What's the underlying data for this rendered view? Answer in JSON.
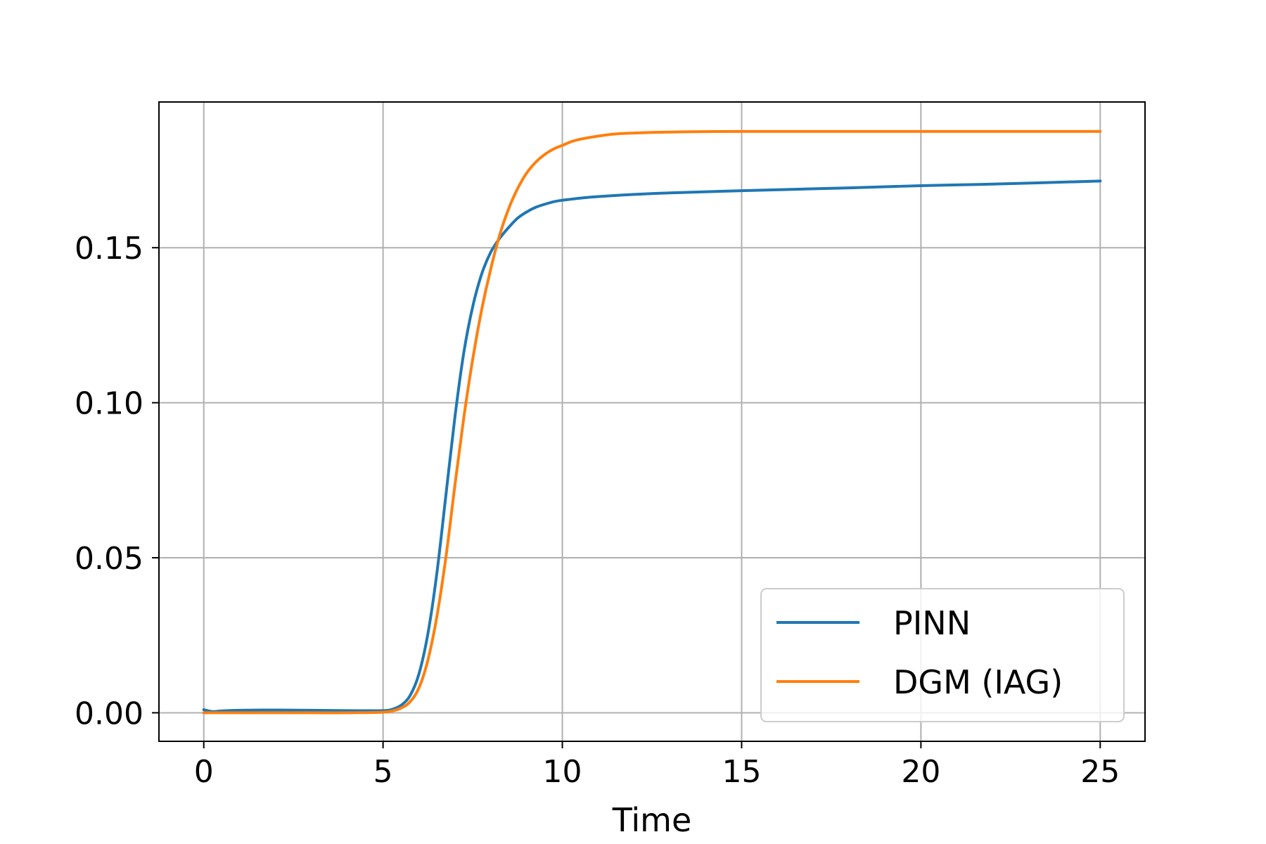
{
  "chart_data": {
    "type": "line",
    "title": "",
    "xlabel": "Time",
    "ylabel": "",
    "xlim": [
      -1.25,
      26.25
    ],
    "ylim": [
      -0.0092,
      0.197
    ],
    "xticks": [
      0,
      5,
      10,
      15,
      20,
      25
    ],
    "xtick_labels": [
      "0",
      "5",
      "10",
      "15",
      "20",
      "25"
    ],
    "yticks": [
      0.0,
      0.05,
      0.1,
      0.15
    ],
    "ytick_labels": [
      "0.00",
      "0.05",
      "0.10",
      "0.15"
    ],
    "grid": true,
    "legend_position": "lower-right",
    "series": [
      {
        "name": "PINN",
        "color": "#1f77b4",
        "x": [
          0,
          0.25,
          0.5,
          1,
          2,
          3,
          4,
          5,
          5.25,
          5.5,
          5.75,
          6,
          6.25,
          6.5,
          6.75,
          7,
          7.25,
          7.5,
          7.75,
          8,
          8.25,
          8.5,
          8.75,
          9,
          9.25,
          9.5,
          9.75,
          10,
          10.5,
          11,
          12,
          13,
          15,
          18,
          20,
          22,
          25
        ],
        "y": [
          0.001,
          0.0004,
          0.0006,
          0.0008,
          0.0009,
          0.0008,
          0.0007,
          0.0007,
          0.0011,
          0.0024,
          0.0055,
          0.0125,
          0.0255,
          0.045,
          0.07,
          0.095,
          0.116,
          0.131,
          0.1415,
          0.1485,
          0.153,
          0.1565,
          0.1595,
          0.1615,
          0.163,
          0.164,
          0.1648,
          0.1653,
          0.166,
          0.1665,
          0.1672,
          0.1677,
          0.1684,
          0.1693,
          0.17,
          0.1705,
          0.1715
        ]
      },
      {
        "name": "DGM (IAG)",
        "color": "#ff7f0e",
        "x": [
          0,
          1,
          2,
          3,
          4,
          5,
          5.25,
          5.5,
          5.75,
          6,
          6.25,
          6.5,
          6.75,
          7,
          7.25,
          7.5,
          7.75,
          8,
          8.25,
          8.5,
          8.75,
          9,
          9.25,
          9.5,
          9.75,
          10,
          10.25,
          10.5,
          11,
          11.5,
          12,
          13,
          15,
          20,
          25
        ],
        "y": [
          0.0,
          0.0,
          0.0,
          0.0,
          0.0,
          0.0002,
          0.0006,
          0.0015,
          0.0035,
          0.008,
          0.017,
          0.031,
          0.05,
          0.073,
          0.095,
          0.114,
          0.13,
          0.143,
          0.154,
          0.1625,
          0.169,
          0.174,
          0.1775,
          0.18,
          0.1818,
          0.183,
          0.1842,
          0.185,
          0.186,
          0.1867,
          0.187,
          0.1873,
          0.1875,
          0.1875,
          0.1875
        ]
      }
    ]
  }
}
